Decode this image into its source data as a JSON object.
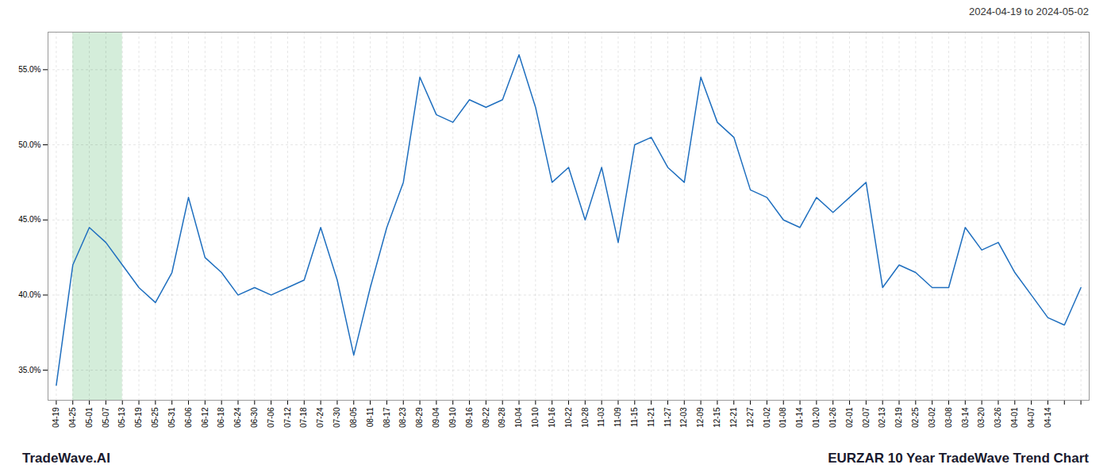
{
  "chart_data": {
    "type": "line",
    "title": "EURZAR 10 Year TradeWave Trend Chart",
    "subtitle": "2024-04-19 to 2024-05-02",
    "annotations": [
      "TradeWave.AI"
    ],
    "color": "#1f6fbf",
    "grid": true,
    "highlight": {
      "from": "04-25",
      "to": "05-13",
      "color": "#d4edda"
    },
    "categories": [
      "04-19",
      "04-25",
      "05-01",
      "05-07",
      "05-13",
      "05-19",
      "05-25",
      "05-31",
      "06-06",
      "06-12",
      "06-18",
      "06-24",
      "06-30",
      "07-06",
      "07-12",
      "07-18",
      "07-24",
      "07-30",
      "08-05",
      "08-11",
      "08-17",
      "08-23",
      "08-29",
      "09-04",
      "09-10",
      "09-16",
      "09-22",
      "09-28",
      "10-04",
      "10-10",
      "10-16",
      "10-22",
      "10-28",
      "11-03",
      "11-09",
      "11-15",
      "11-21",
      "11-27",
      "12-03",
      "12-09",
      "12-15",
      "12-21",
      "12-27",
      "01-02",
      "01-08",
      "01-14",
      "01-20",
      "01-26",
      "02-01",
      "02-07",
      "02-13",
      "02-19",
      "02-25",
      "03-02",
      "03-08",
      "03-14",
      "03-20",
      "03-26",
      "04-01",
      "04-07",
      "04-14",
      null,
      null
    ],
    "values": [
      34.0,
      42.0,
      44.5,
      43.5,
      42.0,
      40.5,
      39.5,
      41.5,
      46.5,
      42.5,
      41.5,
      40.0,
      40.5,
      40.0,
      40.5,
      41.0,
      44.5,
      41.0,
      36.0,
      40.5,
      44.5,
      47.5,
      54.5,
      52.0,
      51.5,
      53.0,
      52.5,
      53.0,
      56.0,
      52.5,
      47.5,
      48.5,
      45.0,
      48.5,
      43.5,
      50.0,
      50.5,
      48.5,
      47.5,
      54.5,
      51.5,
      50.5,
      47.0,
      46.5,
      45.0,
      44.5,
      46.5,
      45.5,
      46.5,
      47.5,
      40.5,
      42.0,
      41.5,
      40.5,
      40.5,
      44.5,
      43.0,
      43.5,
      41.5,
      40.0,
      38.5,
      38.0,
      40.5
    ],
    "ylim": [
      33.0,
      57.5
    ],
    "yticks": [
      {
        "value": 35.0,
        "label": "35.0%"
      },
      {
        "value": 40.0,
        "label": "40.0%"
      },
      {
        "value": 45.0,
        "label": "45.0%"
      },
      {
        "value": 50.0,
        "label": "50.0%"
      },
      {
        "value": 55.0,
        "label": "55.0%"
      }
    ]
  }
}
